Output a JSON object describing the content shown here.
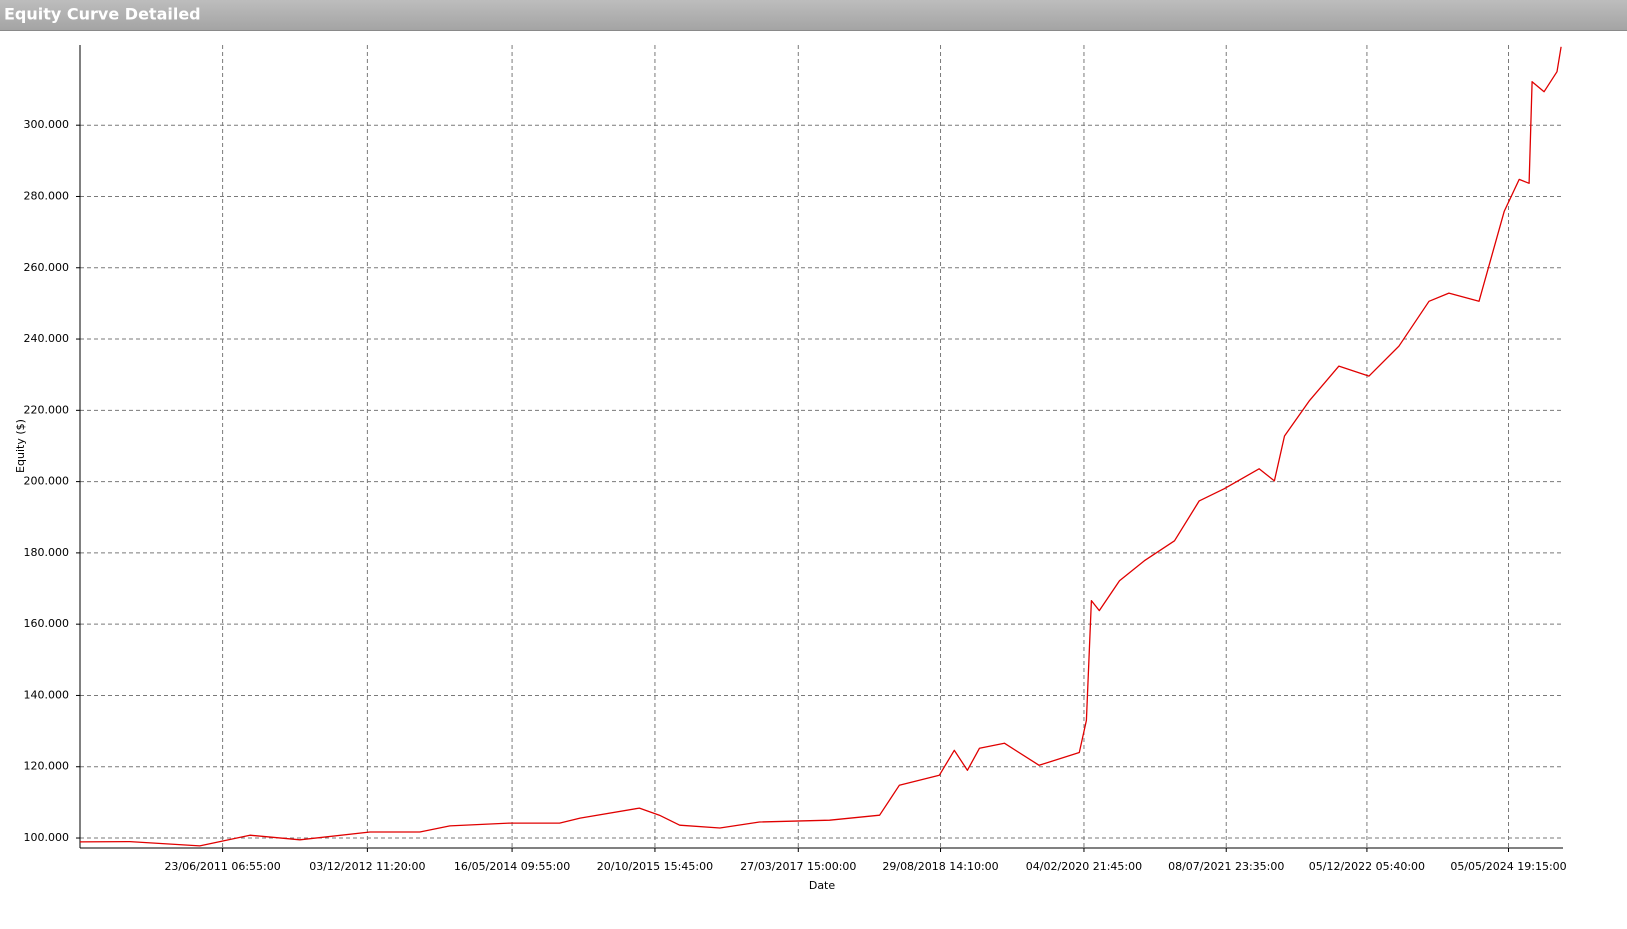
{
  "chart_data": {
    "type": "line",
    "title": "Equity Curve Detailed",
    "x_label": "Date",
    "y_label": "Equity ($)",
    "xlim": [
      "18/01/2010",
      "21/11/2024"
    ],
    "xticks": [
      "23/06/2011 06:55:00",
      "03/12/2012 11:20:00",
      "16/05/2014 09:55:00",
      "20/10/2015 15:45:00",
      "27/03/2017 15:00:00",
      "29/08/2018 14:10:00",
      "04/02/2020 21:45:00",
      "08/07/2021 23:35:00",
      "05/12/2022 05:40:00",
      "05/05/2024 19:15:00"
    ],
    "ylim": [
      97200,
      322500
    ],
    "yticks": [
      {
        "value": 100000,
        "label": "100.000"
      },
      {
        "value": 120000,
        "label": "120.000"
      },
      {
        "value": 140000,
        "label": "140.000"
      },
      {
        "value": 160000,
        "label": "160.000"
      },
      {
        "value": 180000,
        "label": "180.000"
      },
      {
        "value": 200000,
        "label": "200.000"
      },
      {
        "value": 220000,
        "label": "220.000"
      },
      {
        "value": 240000,
        "label": "240.000"
      },
      {
        "value": 260000,
        "label": "260.000"
      },
      {
        "value": 280000,
        "label": "280.000"
      },
      {
        "value": 300000,
        "label": "300.000"
      }
    ],
    "grid": true,
    "x": [
      "18/01/2010",
      "19/07/2010",
      "01/04/2011",
      "01/10/2011",
      "01/04/2012",
      "13/12/2012",
      "13/06/2013",
      "01/10/2013",
      "08/05/2014",
      "06/11/2014",
      "20/01/2015",
      "25/08/2015",
      "06/11/2015",
      "19/01/2016",
      "14/06/2016",
      "06/11/2016",
      "20/07/2017",
      "19/01/2018",
      "01/04/2018",
      "25/08/2018",
      "19/10/2018",
      "06/12/2018",
      "19/01/2019",
      "20/04/2019",
      "25/08/2019",
      "19/01/2020",
      "14/02/2020",
      "03/03/2020",
      "01/04/2020",
      "14/06/2020",
      "13/09/2020",
      "01/01/2021",
      "01/04/2021",
      "02/07/2021",
      "06/11/2021",
      "01/01/2022",
      "07/02/2022",
      "08/05/2022",
      "25/08/2022",
      "13/12/2022",
      "01/04/2023",
      "20/07/2023",
      "01/10/2023",
      "19/01/2024",
      "20/04/2024",
      "14/06/2024",
      "20/07/2024",
      "31/07/2024",
      "13/09/2024",
      "30/10/2024",
      "14/11/2024"
    ],
    "series": [
      {
        "name": "Equity",
        "color": "#e00000",
        "values": [
          98900,
          99000,
          97800,
          100800,
          99500,
          101700,
          101700,
          103400,
          104200,
          104200,
          105600,
          108400,
          106400,
          103600,
          102800,
          104500,
          105000,
          106400,
          114800,
          117600,
          124600,
          119000,
          125200,
          126600,
          120400,
          124000,
          133000,
          166600,
          163800,
          172200,
          177800,
          183400,
          194600,
          198000,
          203600,
          200200,
          212800,
          222600,
          232400,
          229600,
          238000,
          250600,
          252900,
          250600,
          275800,
          284800,
          283700,
          312200,
          309400,
          315000,
          322000
        ]
      }
    ]
  }
}
